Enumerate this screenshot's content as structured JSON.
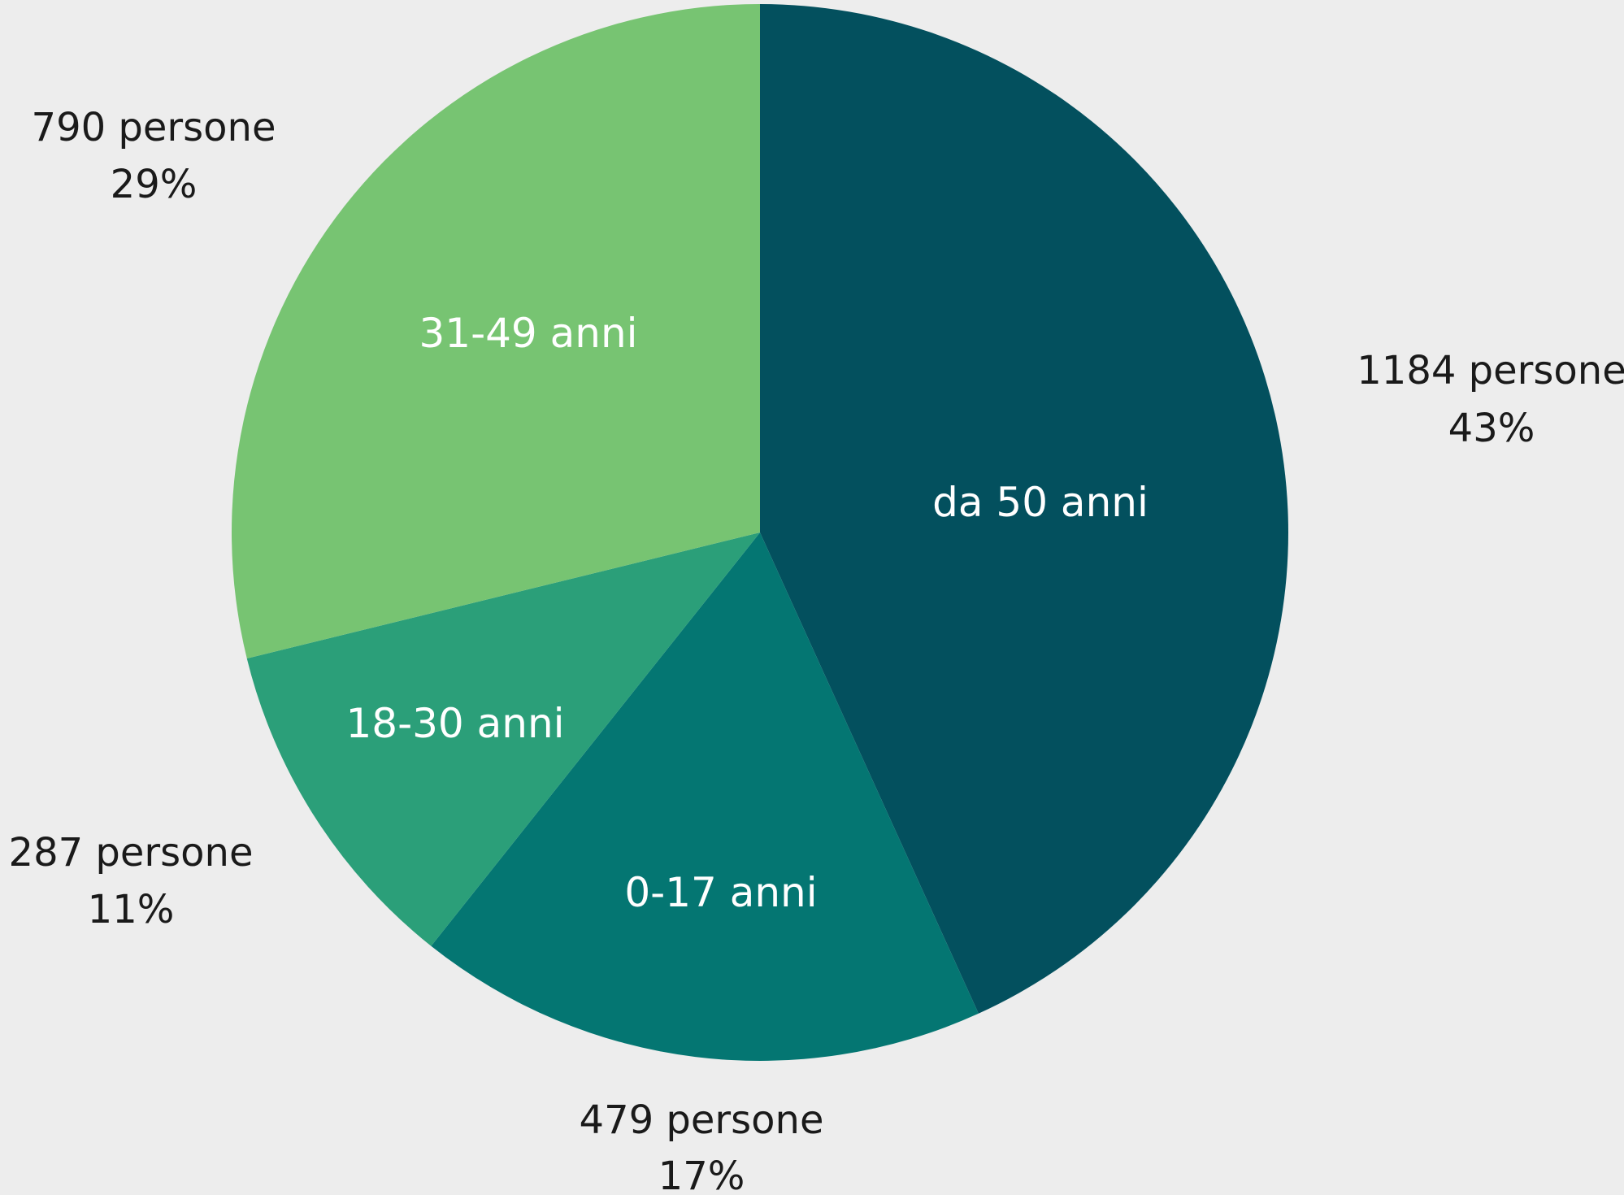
{
  "chart_data": {
    "type": "pie",
    "title": "",
    "slices": [
      {
        "label": "da 50 anni",
        "count_label": "1184 persone",
        "percent_label": "43%",
        "value": 1184,
        "percent": 43,
        "color": "#03505e"
      },
      {
        "label": "0-17 anni",
        "count_label": "479 persone",
        "percent_label": "17%",
        "value": 479,
        "percent": 17,
        "color": "#047672"
      },
      {
        "label": "18-30 anni",
        "count_label": "287 persone",
        "percent_label": "11%",
        "value": 287,
        "percent": 11,
        "color": "#2b9f79"
      },
      {
        "label": "31-49 anni",
        "count_label": "790 persone",
        "percent_label": "29%",
        "value": 790,
        "percent": 29,
        "color": "#77c472"
      }
    ],
    "start": "12 o'clock",
    "direction": "clockwise",
    "background": "#ededed"
  }
}
